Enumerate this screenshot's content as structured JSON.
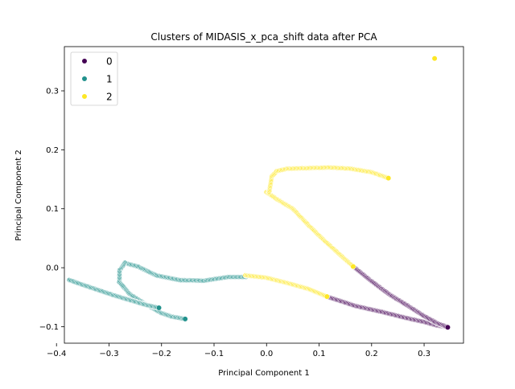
{
  "chart_data": {
    "type": "scatter",
    "title": "Clusters of MIDASIS_x_pca_shift data after PCA",
    "xlabel": "Principal Component 1",
    "ylabel": "Principal Component 2",
    "xlim": [
      -0.385,
      0.375
    ],
    "ylim": [
      -0.128,
      0.375
    ],
    "xticks": [
      -0.4,
      -0.3,
      -0.2,
      -0.1,
      0.0,
      0.1,
      0.2,
      0.3
    ],
    "xtick_labels": [
      "−0.4",
      "−0.3",
      "−0.2",
      "−0.1",
      "0.0",
      "0.1",
      "0.2",
      "0.3"
    ],
    "yticks": [
      -0.1,
      0.0,
      0.1,
      0.2,
      0.3
    ],
    "ytick_labels": [
      "−0.1",
      "0.0",
      "0.1",
      "0.2",
      "0.3"
    ],
    "grid": false,
    "legend_position": "top-left",
    "series": [
      {
        "name": "0",
        "color": "#440154",
        "paths": [
          [
            [
              0.115,
              -0.049
            ],
            [
              0.17,
              -0.065
            ],
            [
              0.22,
              -0.075
            ],
            [
              0.265,
              -0.085
            ],
            [
              0.3,
              -0.092
            ],
            [
              0.325,
              -0.098
            ],
            [
              0.345,
              -0.101
            ]
          ],
          [
            [
              0.165,
              0.002
            ],
            [
              0.2,
              -0.023
            ],
            [
              0.235,
              -0.046
            ],
            [
              0.27,
              -0.065
            ],
            [
              0.3,
              -0.082
            ],
            [
              0.325,
              -0.094
            ],
            [
              0.345,
              -0.101
            ]
          ]
        ]
      },
      {
        "name": "1",
        "color": "#21918c",
        "paths": [
          [
            [
              -0.04,
              -0.016
            ],
            [
              -0.075,
              -0.016
            ],
            [
              -0.12,
              -0.022
            ],
            [
              -0.165,
              -0.021
            ],
            [
              -0.21,
              -0.013
            ],
            [
              -0.245,
              0.002
            ],
            [
              -0.27,
              0.008
            ],
            [
              -0.28,
              -0.005
            ],
            [
              -0.28,
              -0.025
            ],
            [
              -0.26,
              -0.045
            ],
            [
              -0.23,
              -0.062
            ],
            [
              -0.2,
              -0.077
            ],
            [
              -0.18,
              -0.083
            ],
            [
              -0.155,
              -0.087
            ]
          ],
          [
            [
              -0.375,
              -0.021
            ],
            [
              -0.35,
              -0.029
            ],
            [
              -0.32,
              -0.038
            ],
            [
              -0.29,
              -0.047
            ],
            [
              -0.26,
              -0.055
            ],
            [
              -0.23,
              -0.063
            ],
            [
              -0.205,
              -0.068
            ]
          ]
        ]
      },
      {
        "name": "2",
        "color": "#fde725",
        "paths": [
          [
            [
              -0.04,
              -0.013
            ],
            [
              0.0,
              -0.017
            ],
            [
              0.04,
              -0.026
            ],
            [
              0.08,
              -0.036
            ],
            [
              0.115,
              -0.049
            ]
          ],
          [
            [
              0.0,
              0.128
            ],
            [
              0.02,
              0.116
            ],
            [
              0.05,
              0.1
            ],
            [
              0.08,
              0.072
            ],
            [
              0.11,
              0.046
            ],
            [
              0.14,
              0.022
            ],
            [
              0.165,
              0.002
            ]
          ],
          [
            [
              0.005,
              0.128
            ],
            [
              0.01,
              0.155
            ],
            [
              0.02,
              0.164
            ],
            [
              0.04,
              0.168
            ],
            [
              0.08,
              0.169
            ],
            [
              0.12,
              0.17
            ],
            [
              0.16,
              0.168
            ],
            [
              0.2,
              0.162
            ],
            [
              0.232,
              0.152
            ]
          ]
        ],
        "points": [
          [
            0.32,
            0.355
          ]
        ]
      }
    ]
  }
}
